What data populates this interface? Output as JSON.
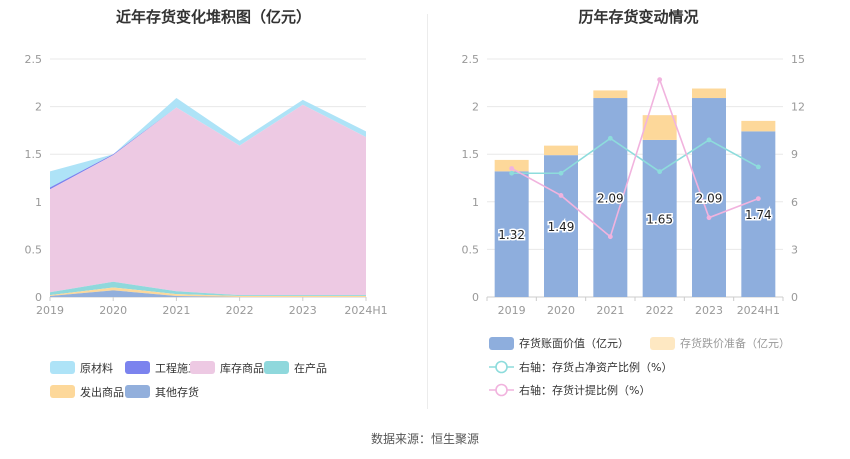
{
  "source_label": "数据来源：恒生聚源",
  "colors": {
    "raw_material": "#aee3f7",
    "engineering": "#7b83ee",
    "goods_in_stock": "#edc9e3",
    "wip": "#8fd8dc",
    "shipped_goods": "#fdd89a",
    "other": "#92afdc",
    "book_value": "#8eaedd",
    "provision": "#fdd89a",
    "ratio_line": "#8ddcdc",
    "provision_line": "#f1b3de",
    "axis_text": "#999999",
    "grid": "#e8e8e8"
  },
  "chart_data": [
    {
      "type": "area",
      "title": "近年存货变化堆积图（亿元）",
      "stacked": true,
      "categories": [
        "2019",
        "2020",
        "2021",
        "2022",
        "2023",
        "2024H1"
      ],
      "ylim": [
        0,
        2.5
      ],
      "yticks": [
        "0",
        "0.5",
        "1",
        "1.5",
        "2",
        "2.5"
      ],
      "series": [
        {
          "name": "其他存货",
          "color_key": "other",
          "values": [
            0.01,
            0.07,
            0.01,
            0.0,
            0.0,
            0.0
          ]
        },
        {
          "name": "发出商品",
          "color_key": "shipped_goods",
          "values": [
            0.01,
            0.03,
            0.02,
            0.01,
            0.01,
            0.01
          ]
        },
        {
          "name": "在产品",
          "color_key": "wip",
          "values": [
            0.03,
            0.06,
            0.03,
            0.01,
            0.01,
            0.01
          ]
        },
        {
          "name": "库存商品",
          "color_key": "goods_in_stock",
          "values": [
            1.08,
            1.33,
            1.93,
            1.57,
            2.0,
            1.66
          ]
        },
        {
          "name": "工程施工",
          "color_key": "engineering",
          "values": [
            0.02,
            0.01,
            0.0,
            0.0,
            0.0,
            0.0
          ]
        },
        {
          "name": "原材料",
          "color_key": "raw_material",
          "values": [
            0.17,
            0.0,
            0.1,
            0.05,
            0.05,
            0.06
          ]
        }
      ],
      "legend": {
        "placement": "bottom",
        "rows": [
          [
            "原材料",
            "工程施工",
            "库存商品",
            "在产品"
          ],
          [
            "发出商品",
            "其他存货"
          ]
        ]
      }
    },
    {
      "type": "bar+line",
      "title": "历年存货变动情况",
      "categories": [
        "2019",
        "2020",
        "2021",
        "2022",
        "2023",
        "2024H1"
      ],
      "ylim_left": [
        0,
        2.5
      ],
      "yticks_left": [
        "0",
        "0.5",
        "1",
        "1.5",
        "2",
        "2.5"
      ],
      "ylim_right": [
        0,
        15
      ],
      "yticks_right": [
        "0",
        "3",
        "6",
        "9",
        "12",
        "15"
      ],
      "bars": [
        {
          "name": "存货账面价值（亿元）",
          "color_key": "book_value",
          "values": [
            1.32,
            1.49,
            2.09,
            1.65,
            2.09,
            1.74
          ],
          "labels": [
            "1.32",
            "1.49",
            "2.09",
            "1.65",
            "2.09",
            "1.74"
          ]
        },
        {
          "name": "存货跌价准备（亿元）",
          "color_key": "provision",
          "values": [
            0.12,
            0.1,
            0.08,
            0.26,
            0.1,
            0.11
          ]
        }
      ],
      "lines": [
        {
          "name": "右轴：存货占净资产比例（%）",
          "color_key": "ratio_line",
          "values": [
            7.8,
            7.8,
            10.0,
            7.9,
            9.9,
            8.2
          ]
        },
        {
          "name": "右轴：存货计提比例（%）",
          "color_key": "provision_line",
          "values": [
            8.1,
            6.4,
            3.8,
            13.7,
            5.0,
            6.2
          ]
        }
      ],
      "legend": {
        "placement": "bottom"
      }
    }
  ]
}
